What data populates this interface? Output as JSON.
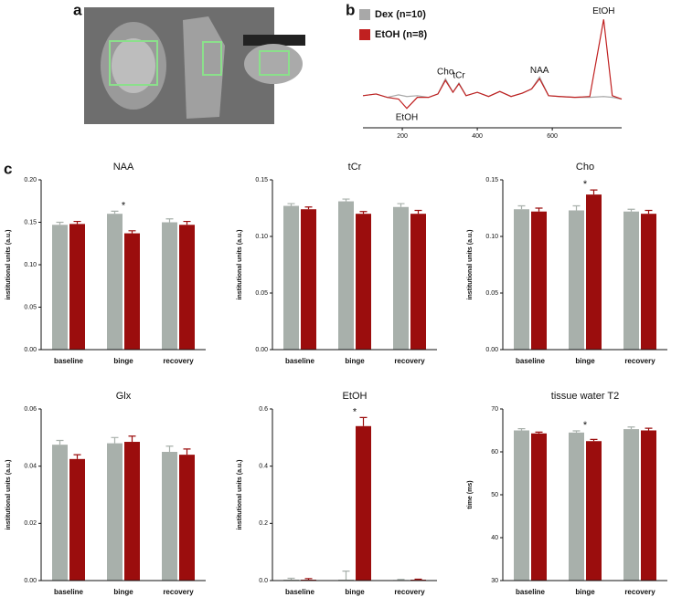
{
  "panel_labels": [
    "a",
    "b",
    "c"
  ],
  "chart_data": [
    {
      "type": "line",
      "x": [
        95,
        130,
        160,
        190,
        212,
        240,
        270,
        295,
        315,
        335,
        351,
        370,
        400,
        430,
        460,
        490,
        520,
        545,
        566,
        590,
        620,
        660,
        700,
        737,
        760,
        785
      ],
      "xlim": [
        95,
        785
      ],
      "xticks": [
        200,
        400,
        600
      ],
      "ylim": [
        -15,
        110
      ],
      "series": [
        {
          "name": "Dex    (n=10)",
          "color": "#a8a8a8",
          "values": [
            10,
            12,
            8,
            11,
            9,
            10,
            8,
            12,
            30,
            14,
            25,
            10,
            14,
            9,
            15,
            9,
            13,
            18,
            32,
            10,
            9,
            8,
            8,
            9,
            8,
            6
          ]
        },
        {
          "name": "EtOH (n=8)",
          "color": "#c02020",
          "values": [
            10,
            12,
            8,
            6,
            -5,
            8,
            8,
            12,
            28,
            14,
            24,
            10,
            14,
            9,
            15,
            9,
            13,
            18,
            30,
            10,
            9,
            8,
            9,
            100,
            10,
            6
          ]
        }
      ],
      "annotations": [
        {
          "text": "EtOH",
          "x": 212
        },
        {
          "text": "Cho",
          "x": 315
        },
        {
          "text": "tCr",
          "x": 351
        },
        {
          "text": "NAA",
          "x": 566
        },
        {
          "text": "EtOH",
          "x": 737
        }
      ]
    },
    {
      "type": "bar",
      "title": "NAA",
      "ylabel": "institutional units (a.u.)",
      "categories": [
        "baseline",
        "binge",
        "recovery"
      ],
      "ylim": [
        0,
        0.2
      ],
      "yticks": [
        {
          "value": 0,
          "label": "0.00"
        },
        {
          "value": 0.05,
          "label": "0.05"
        },
        {
          "value": 0.1,
          "label": "0.10"
        },
        {
          "value": 0.15,
          "label": "0.15"
        },
        {
          "value": 0.2,
          "label": "0.20"
        }
      ],
      "series": [
        {
          "color": "#a8b0ab",
          "values": [
            0.147,
            0.16,
            0.15
          ],
          "errors": [
            0.003,
            0.003,
            0.004
          ]
        },
        {
          "color": "#9b0d0d",
          "values": [
            0.148,
            0.137,
            0.147
          ],
          "errors": [
            0.003,
            0.003,
            0.004
          ]
        }
      ],
      "annotations": [
        {
          "text": "*",
          "x": "binge"
        }
      ]
    },
    {
      "type": "bar",
      "title": "tCr",
      "ylabel": "institutional units (a.u.)",
      "categories": [
        "baseline",
        "binge",
        "recovery"
      ],
      "ylim": [
        0,
        0.15
      ],
      "yticks": [
        {
          "value": 0,
          "label": "0.00"
        },
        {
          "value": 0.05,
          "label": "0.05"
        },
        {
          "value": 0.1,
          "label": "0.10"
        },
        {
          "value": 0.15,
          "label": "0.15"
        }
      ],
      "series": [
        {
          "color": "#a8b0ab",
          "values": [
            0.127,
            0.131,
            0.126
          ],
          "errors": [
            0.002,
            0.002,
            0.003
          ]
        },
        {
          "color": "#9b0d0d",
          "values": [
            0.124,
            0.12,
            0.12
          ],
          "errors": [
            0.002,
            0.002,
            0.003
          ]
        }
      ]
    },
    {
      "type": "bar",
      "title": "Cho",
      "ylabel": "institutional units (a.u.)",
      "categories": [
        "baseline",
        "binge",
        "recovery"
      ],
      "ylim": [
        0,
        0.15
      ],
      "yticks": [
        {
          "value": 0,
          "label": "0.00"
        },
        {
          "value": 0.05,
          "label": "0.05"
        },
        {
          "value": 0.1,
          "label": "0.10"
        },
        {
          "value": 0.15,
          "label": "0.15"
        }
      ],
      "series": [
        {
          "color": "#a8b0ab",
          "values": [
            0.124,
            0.123,
            0.122
          ],
          "errors": [
            0.003,
            0.004,
            0.002
          ]
        },
        {
          "color": "#9b0d0d",
          "values": [
            0.122,
            0.137,
            0.12
          ],
          "errors": [
            0.003,
            0.004,
            0.003
          ]
        }
      ],
      "annotations": [
        {
          "text": "*",
          "x": "binge"
        }
      ]
    },
    {
      "type": "bar",
      "title": "Glx",
      "ylabel": "institutional units (a.u.)",
      "categories": [
        "baseline",
        "binge",
        "recovery"
      ],
      "ylim": [
        0,
        0.06
      ],
      "yticks": [
        {
          "value": 0,
          "label": "0.00"
        },
        {
          "value": 0.02,
          "label": "0.02"
        },
        {
          "value": 0.04,
          "label": "0.04"
        },
        {
          "value": 0.06,
          "label": "0.06"
        }
      ],
      "series": [
        {
          "color": "#a8b0ab",
          "values": [
            0.0475,
            0.048,
            0.045
          ],
          "errors": [
            0.0015,
            0.002,
            0.002
          ]
        },
        {
          "color": "#9b0d0d",
          "values": [
            0.0425,
            0.0485,
            0.044
          ],
          "errors": [
            0.0015,
            0.002,
            0.002
          ]
        }
      ]
    },
    {
      "type": "bar",
      "title": "EtOH",
      "ylabel": "institutional units (a.u.)",
      "categories": [
        "baseline",
        "binge",
        "recovery"
      ],
      "ylim": [
        0,
        0.6
      ],
      "yticks": [
        {
          "value": 0,
          "label": "0.0"
        },
        {
          "value": 0.2,
          "label": "0.2"
        },
        {
          "value": 0.4,
          "label": "0.4"
        },
        {
          "value": 0.6,
          "label": "0.6"
        }
      ],
      "series": [
        {
          "color": "#a8b0ab",
          "values": [
            0.003,
            0.003,
            0.002
          ],
          "errors": [
            0.005,
            0.03,
            0.002
          ]
        },
        {
          "color": "#9b0d0d",
          "values": [
            0.003,
            0.54,
            0.003
          ],
          "errors": [
            0.004,
            0.03,
            0.002
          ]
        }
      ],
      "annotations": [
        {
          "text": "*",
          "x": "binge"
        }
      ]
    },
    {
      "type": "bar",
      "title": "tissue water T2",
      "ylabel": "time (ms)",
      "categories": [
        "baseline",
        "binge",
        "recovery"
      ],
      "ylim": [
        30,
        70
      ],
      "yticks": [
        30,
        40,
        50,
        60,
        70
      ],
      "series": [
        {
          "color": "#a8b0ab",
          "values": [
            65,
            64.5,
            65.3
          ],
          "errors": [
            0.4,
            0.4,
            0.5
          ]
        },
        {
          "color": "#9b0d0d",
          "values": [
            64.3,
            62.5,
            65
          ],
          "errors": [
            0.3,
            0.4,
            0.5
          ]
        }
      ],
      "annotations": [
        {
          "text": "*",
          "x": "binge"
        }
      ]
    }
  ]
}
